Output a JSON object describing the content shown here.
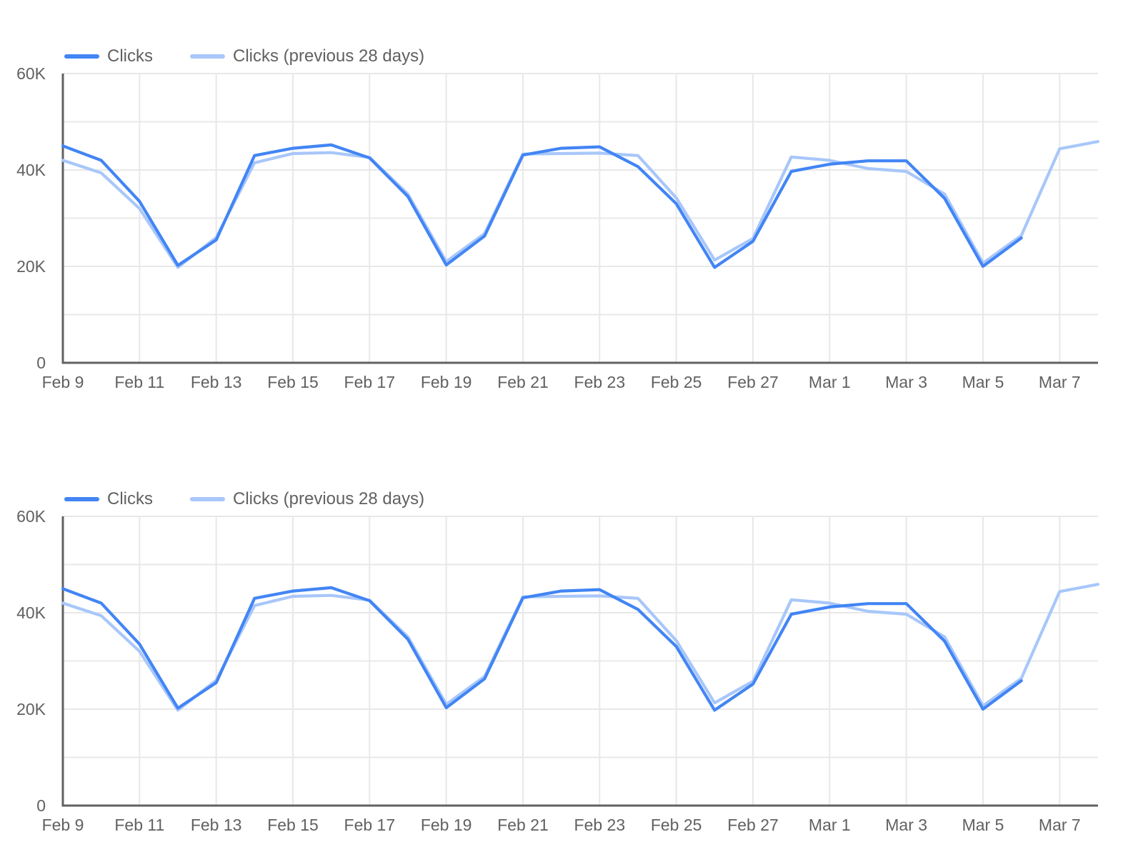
{
  "page": {
    "background": "#ffffff"
  },
  "colors": {
    "clicks_line": "#4285f4",
    "clicks_previous_line": "#a8c7fa",
    "gridline": "#e8e8e8",
    "axis_line": "#616161",
    "label_text": "#616161"
  },
  "chart_data": [
    {
      "type": "line",
      "title": "",
      "x": [
        "Feb 9",
        "Feb 10",
        "Feb 11",
        "Feb 12",
        "Feb 13",
        "Feb 14",
        "Feb 15",
        "Feb 16",
        "Feb 17",
        "Feb 18",
        "Feb 19",
        "Feb 20",
        "Feb 21",
        "Feb 22",
        "Feb 23",
        "Feb 24",
        "Feb 25",
        "Feb 26",
        "Feb 27",
        "Feb 28",
        "Mar 1",
        "Mar 2",
        "Mar 3",
        "Mar 4",
        "Mar 5",
        "Mar 6",
        "Mar 7",
        "Mar 8"
      ],
      "x_tick_labels": [
        "Feb 9",
        "Feb 11",
        "Feb 13",
        "Feb 15",
        "Feb 17",
        "Feb 19",
        "Feb 21",
        "Feb 23",
        "Feb 25",
        "Feb 27",
        "Mar 1",
        "Mar 3",
        "Mar 5",
        "Mar 7"
      ],
      "series": [
        {
          "name": "Clicks",
          "color": "#4285f4",
          "values": [
            45000,
            42000,
            33500,
            20200,
            25500,
            43000,
            44500,
            45200,
            42500,
            34500,
            20300,
            26300,
            43100,
            44500,
            44800,
            40700,
            33000,
            19800,
            25200,
            39700,
            41200,
            41900,
            41900,
            34100,
            20000,
            25900,
            null,
            null
          ]
        },
        {
          "name": "Clicks (previous 28 days)",
          "color": "#a8c7fa",
          "values": [
            42000,
            39400,
            32000,
            19800,
            26000,
            41500,
            43400,
            43600,
            42600,
            35000,
            21000,
            26800,
            43300,
            43400,
            43500,
            43000,
            34200,
            21300,
            25800,
            42700,
            42000,
            40300,
            39700,
            35000,
            20700,
            26400,
            44400,
            45900
          ]
        }
      ],
      "ylim": [
        0,
        60000
      ],
      "y_ticks": [
        {
          "label": "60K",
          "value": 60000
        },
        {
          "label": "40K",
          "value": 40000
        },
        {
          "label": "20K",
          "value": 20000
        },
        {
          "label": "0",
          "value": 0
        }
      ],
      "y_gridline_step": 10000,
      "grid": true,
      "legend_position": "top-left"
    },
    {
      "type": "line",
      "title": "",
      "x": [
        "Feb 9",
        "Feb 10",
        "Feb 11",
        "Feb 12",
        "Feb 13",
        "Feb 14",
        "Feb 15",
        "Feb 16",
        "Feb 17",
        "Feb 18",
        "Feb 19",
        "Feb 20",
        "Feb 21",
        "Feb 22",
        "Feb 23",
        "Feb 24",
        "Feb 25",
        "Feb 26",
        "Feb 27",
        "Feb 28",
        "Mar 1",
        "Mar 2",
        "Mar 3",
        "Mar 4",
        "Mar 5",
        "Mar 6",
        "Mar 7",
        "Mar 8"
      ],
      "x_tick_labels": [
        "Feb 9",
        "Feb 11",
        "Feb 13",
        "Feb 15",
        "Feb 17",
        "Feb 19",
        "Feb 21",
        "Feb 23",
        "Feb 25",
        "Feb 27",
        "Mar 1",
        "Mar 3",
        "Mar 5",
        "Mar 7"
      ],
      "series": [
        {
          "name": "Clicks",
          "color": "#4285f4",
          "values": [
            45000,
            42000,
            33500,
            20200,
            25500,
            43000,
            44500,
            45200,
            42500,
            34500,
            20300,
            26300,
            43100,
            44500,
            44800,
            40700,
            33000,
            19800,
            25200,
            39700,
            41200,
            41900,
            41900,
            34100,
            20000,
            25900,
            null,
            null
          ]
        },
        {
          "name": "Clicks (previous 28 days)",
          "color": "#a8c7fa",
          "values": [
            42000,
            39400,
            32000,
            19800,
            26000,
            41500,
            43400,
            43600,
            42600,
            35000,
            21000,
            26800,
            43300,
            43400,
            43500,
            43000,
            34200,
            21300,
            25800,
            42700,
            42000,
            40300,
            39700,
            35000,
            20700,
            26400,
            44400,
            45900
          ]
        }
      ],
      "ylim": [
        0,
        60000
      ],
      "y_ticks": [
        {
          "label": "60K",
          "value": 60000
        },
        {
          "label": "40K",
          "value": 40000
        },
        {
          "label": "20K",
          "value": 20000
        },
        {
          "label": "0",
          "value": 0
        }
      ],
      "y_gridline_step": 10000,
      "grid": true,
      "legend_position": "top-left"
    }
  ]
}
